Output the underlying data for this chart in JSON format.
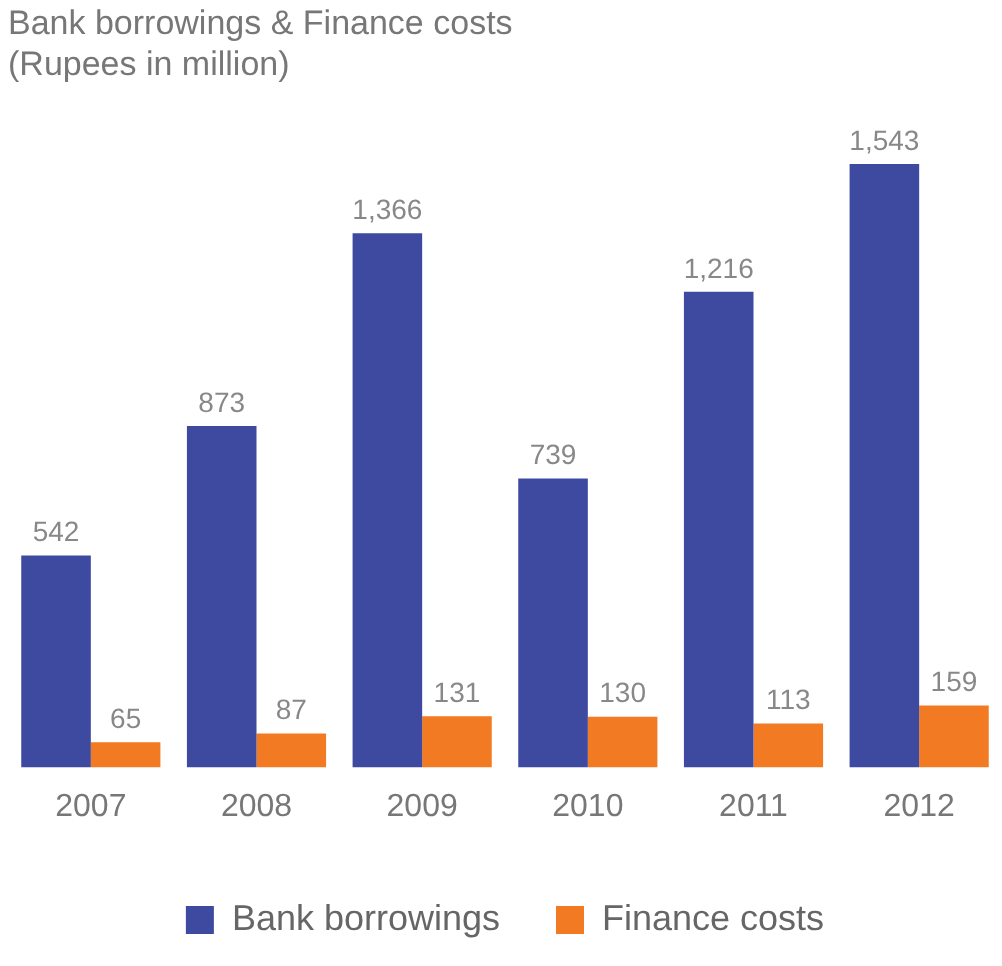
{
  "chart_data": {
    "type": "bar",
    "title": "Bank borrowings & Finance costs",
    "subtitle": "(Rupees in million)",
    "categories": [
      "2007",
      "2008",
      "2009",
      "2010",
      "2011",
      "2012"
    ],
    "series": [
      {
        "name": "Bank borrowings",
        "color": "#3d4aa0",
        "values": [
          542,
          873,
          1366,
          739,
          1216,
          1543
        ],
        "value_labels": [
          "542",
          "873",
          "1,366",
          "739",
          "1,216",
          "1,543"
        ]
      },
      {
        "name": "Finance costs",
        "color": "#f27a22",
        "values": [
          65,
          87,
          131,
          130,
          113,
          159
        ],
        "value_labels": [
          "65",
          "87",
          "131",
          "130",
          "113",
          "159"
        ]
      }
    ],
    "legend": "bottom",
    "grid": false
  }
}
